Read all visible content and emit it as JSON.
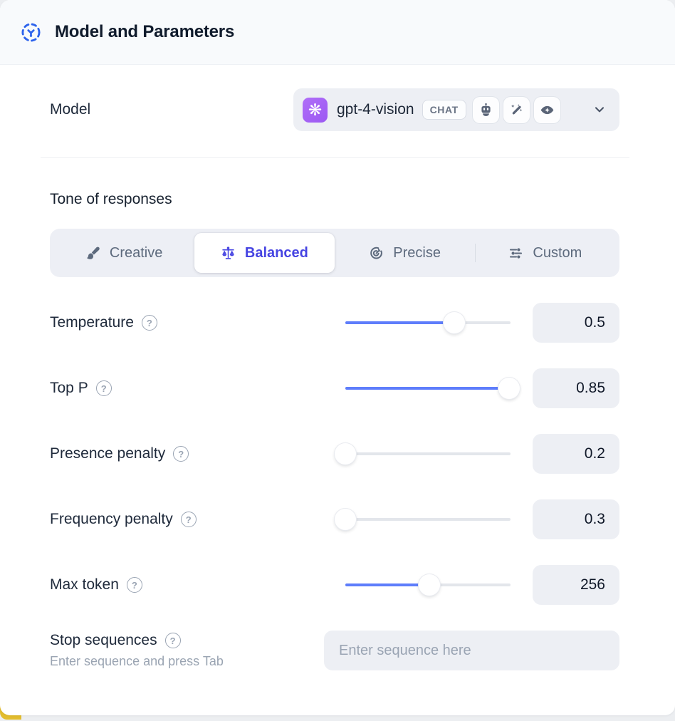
{
  "header": {
    "title": "Model and Parameters",
    "icon": "model-hub-icon",
    "icon_color": "#2d63ec"
  },
  "model": {
    "label": "Model",
    "selected_name": "gpt-4-vision",
    "type_badge": "CHAT",
    "provider_icon": "openai-logo",
    "provider_color": "#a562f5",
    "capability_icons": [
      "bot-icon",
      "magic-wand-icon",
      "vision-eye-icon"
    ]
  },
  "tone": {
    "section_title": "Tone of responses",
    "selected_color": "#4644e2",
    "options": [
      {
        "label": "Creative",
        "icon": "paintbrush",
        "selected": false
      },
      {
        "label": "Balanced",
        "icon": "balance",
        "selected": true
      },
      {
        "label": "Precise",
        "icon": "target",
        "selected": false
      },
      {
        "label": "Custom",
        "icon": "sliders",
        "selected": false
      }
    ]
  },
  "parameters": {
    "slider_fill_color": "#5e7dfb",
    "rows": [
      {
        "label": "Temperature",
        "value": "0.5",
        "fill_percent": 66
      },
      {
        "label": "Top P",
        "value": "0.85",
        "fill_percent": 99
      },
      {
        "label": "Presence penalty",
        "value": "0.2",
        "fill_percent": 0
      },
      {
        "label": "Frequency penalty",
        "value": "0.3",
        "fill_percent": 0
      },
      {
        "label": "Max token",
        "value": "256",
        "fill_percent": 51
      }
    ]
  },
  "stop_sequences": {
    "label": "Stop sequences",
    "hint": "Enter sequence and press Tab",
    "placeholder": "Enter sequence here",
    "value": ""
  },
  "page": {
    "bottom_accent_color": "#e3bd2e"
  }
}
